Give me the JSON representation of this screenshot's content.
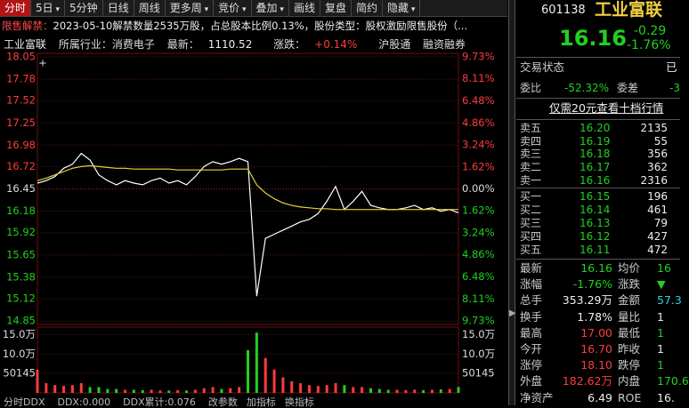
{
  "toolbar": {
    "tabs": [
      "分时",
      "5日",
      "5分钟",
      "日线",
      "周线",
      "更多周",
      "竞价",
      "叠加",
      "画线",
      "复盘",
      "简约",
      "隐藏"
    ]
  },
  "notice": {
    "label": "限售解禁：",
    "text": "2023-05-10解禁数量2535万股，占总股本比例0.13%，股份类型：股权激励限售股份（..."
  },
  "header": {
    "name": "工业富联",
    "industry": "所属行业：消费电子",
    "latest_label": "最新：",
    "latest": "1110.52",
    "change_label": "涨跌：",
    "change": "+0.14%",
    "tags": [
      "沪股通",
      "融资融券"
    ]
  },
  "chart_data": [
    {
      "type": "line",
      "x": [
        0,
        5,
        10,
        15,
        20,
        25,
        30,
        35,
        40,
        45,
        50,
        55,
        60,
        65,
        70,
        75,
        80,
        85,
        90,
        95,
        100,
        105,
        110,
        115,
        120,
        125,
        130,
        135,
        140,
        145,
        150,
        155,
        160,
        165,
        170,
        175,
        180,
        185,
        190,
        195,
        200,
        205,
        210,
        215,
        220,
        225,
        230,
        235,
        240
      ],
      "series": [
        {
          "color": "#ffffff",
          "values": [
            16.52,
            16.55,
            16.6,
            16.7,
            16.75,
            16.88,
            16.8,
            16.62,
            16.55,
            16.5,
            16.55,
            16.52,
            16.5,
            16.55,
            16.58,
            16.52,
            16.55,
            16.5,
            16.6,
            16.72,
            16.78,
            16.75,
            16.78,
            16.82,
            16.78,
            15.15,
            15.85,
            15.9,
            15.95,
            16.0,
            16.05,
            16.08,
            16.15,
            16.3,
            16.48,
            16.2,
            16.3,
            16.42,
            16.25,
            16.22,
            16.2,
            16.2,
            16.22,
            16.25,
            16.2,
            16.22,
            16.18,
            16.2,
            16.16
          ]
        },
        {
          "color": "#e6d23c",
          "values": [
            16.55,
            16.58,
            16.62,
            16.66,
            16.7,
            16.72,
            16.73,
            16.72,
            16.71,
            16.7,
            16.7,
            16.69,
            16.69,
            16.69,
            16.69,
            16.69,
            16.68,
            16.68,
            16.68,
            16.68,
            16.68,
            16.68,
            16.69,
            16.69,
            16.69,
            16.5,
            16.4,
            16.33,
            16.28,
            16.25,
            16.23,
            16.22,
            16.21,
            16.21,
            16.2,
            16.2,
            16.2,
            16.2,
            16.2,
            16.2,
            16.2,
            16.2,
            16.2,
            16.2,
            16.2,
            16.2,
            16.2,
            16.2,
            16.2
          ]
        }
      ],
      "ylim": [
        14.85,
        18.05
      ],
      "yticks": [
        18.05,
        17.78,
        17.52,
        17.25,
        16.98,
        16.72,
        16.45,
        16.18,
        15.92,
        15.65,
        15.38,
        15.12,
        14.85
      ],
      "y2lim": [
        -9.73,
        9.73
      ],
      "y2ticks": [
        {
          "value": 9.73,
          "label": "9.73%"
        },
        {
          "value": 8.11,
          "label": "8.11%"
        },
        {
          "value": 6.48,
          "label": "6.48%"
        },
        {
          "value": 4.86,
          "label": "4.86%"
        },
        {
          "value": 3.24,
          "label": "3.24%"
        },
        {
          "value": 1.62,
          "label": "1.62%"
        },
        {
          "value": 0,
          "label": "0.00%"
        },
        {
          "value": -1.62,
          "label": "1.62%"
        },
        {
          "value": -3.24,
          "label": "3.24%"
        },
        {
          "value": -4.86,
          "label": "4.86%"
        },
        {
          "value": -6.48,
          "label": "6.48%"
        },
        {
          "value": -8.11,
          "label": "8.11%"
        },
        {
          "value": -9.73,
          "label": "9.73%"
        }
      ],
      "up_color": "#ff3b3b",
      "down_color": "#20d020",
      "grid": true
    },
    {
      "type": "bar",
      "x": [
        0,
        5,
        10,
        15,
        20,
        25,
        30,
        35,
        40,
        45,
        50,
        55,
        60,
        65,
        70,
        75,
        80,
        85,
        90,
        95,
        100,
        105,
        110,
        115,
        120,
        125,
        130,
        135,
        140,
        145,
        150,
        155,
        160,
        165,
        170,
        175,
        180,
        185,
        190,
        195,
        200,
        205,
        210,
        215,
        220,
        225,
        230,
        235,
        240
      ],
      "values": [
        6,
        2.5,
        2,
        1.8,
        2,
        2.5,
        1.5,
        1.5,
        1,
        1,
        0.8,
        0.8,
        0.7,
        0.8,
        0.6,
        0.6,
        0.7,
        0.6,
        0.8,
        1.2,
        1.5,
        1,
        1.2,
        1.5,
        11,
        15.5,
        9,
        6,
        4,
        3,
        2.5,
        2,
        1.8,
        2,
        2.5,
        2,
        1.5,
        1.5,
        1.2,
        1,
        0.8,
        0.8,
        0.7,
        0.8,
        0.7,
        0.8,
        0.9,
        1,
        1.5
      ],
      "ylim": [
        0,
        16
      ],
      "yticks": [
        {
          "value": 15,
          "label": "15.0万"
        },
        {
          "value": 10,
          "label": "10.0万"
        },
        {
          "value": 5.0145,
          "label": "50145"
        }
      ],
      "grid": true
    }
  ],
  "bottom": {
    "items": [
      "分时DDX",
      "DDX:0.000",
      "DDX累计:0.076",
      "改参数",
      "加指标",
      "换指标"
    ]
  },
  "quote": {
    "code": "601138",
    "name": "工业富联",
    "price": "16.16",
    "change": "-0.29",
    "pct": "-1.76%"
  },
  "status": {
    "label": "交易状态",
    "value": "已"
  },
  "weibi": {
    "label": "委比",
    "value": "-52.32%",
    "label2": "委差",
    "value2": "-3"
  },
  "promo": "仅需20元查看十档行情",
  "book": [
    [
      "卖五",
      "16.20",
      "2135"
    ],
    [
      "卖四",
      "16.19",
      "55"
    ],
    [
      "卖三",
      "16.18",
      "356"
    ],
    [
      "卖二",
      "16.17",
      "362"
    ],
    [
      "卖一",
      "16.16",
      "2316"
    ],
    [
      "买一",
      "16.15",
      "196"
    ],
    [
      "买二",
      "16.14",
      "461"
    ],
    [
      "买三",
      "16.13",
      "79"
    ],
    [
      "买四",
      "16.12",
      "427"
    ],
    [
      "买五",
      "16.11",
      "472"
    ]
  ],
  "stats": [
    [
      "最新",
      "16.16",
      "均价",
      "16"
    ],
    [
      "涨幅",
      "-1.76%",
      "涨跌",
      "▼"
    ],
    [
      "总手",
      "353.29万",
      "金额",
      "57.3"
    ],
    [
      "换手",
      "1.78%",
      "量比",
      "1"
    ],
    [
      "最高",
      "17.00",
      "最低",
      "1"
    ],
    [
      "今开",
      "16.70",
      "昨收",
      "1"
    ],
    [
      "涨停",
      "18.10",
      "跌停",
      "1"
    ],
    [
      "外盘",
      "182.62万",
      "内盘",
      "170.6"
    ],
    [
      "净资产",
      "6.49",
      "ROE",
      "16."
    ]
  ]
}
